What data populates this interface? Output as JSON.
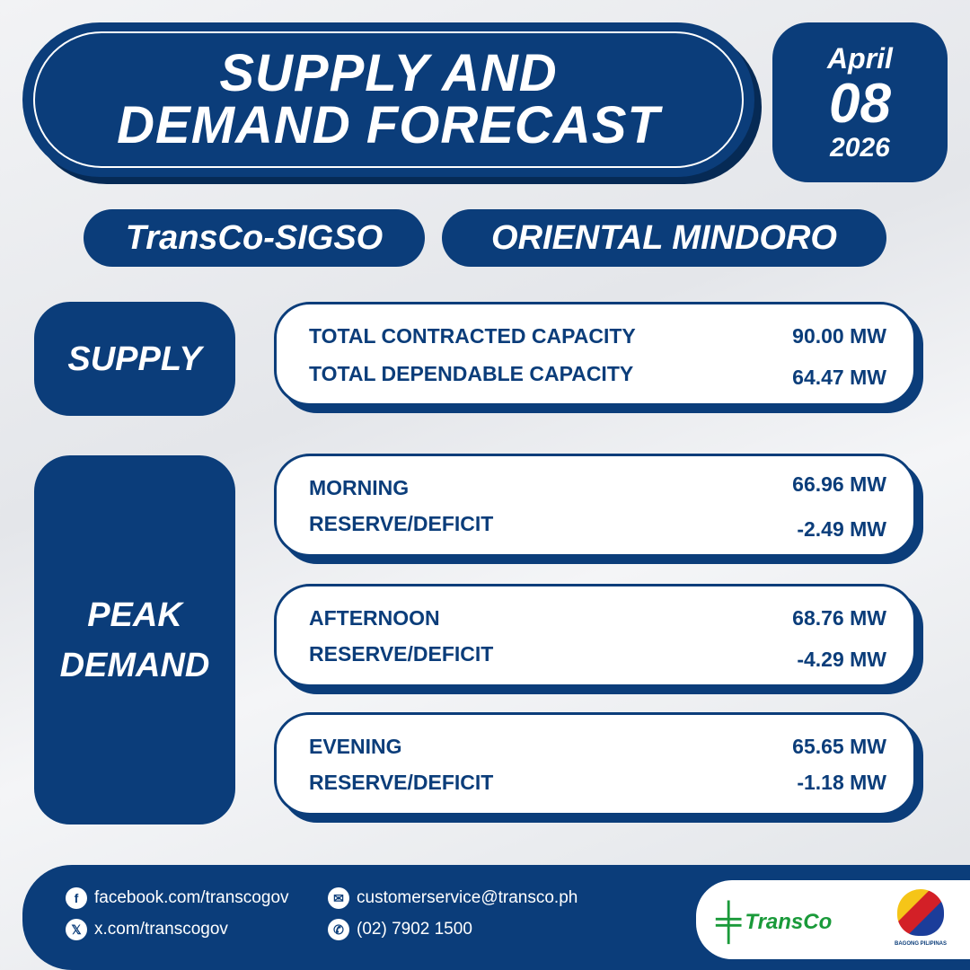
{
  "header": {
    "title_line1": "SUPPLY AND",
    "title_line2": "DEMAND FORECAST"
  },
  "date": {
    "month": "April",
    "day": "08",
    "year": "2026"
  },
  "tags": {
    "office": "TransCo-SIGSO",
    "province": "ORIENTAL MINDORO"
  },
  "supply": {
    "label": "SUPPLY",
    "rows": [
      {
        "label": "TOTAL CONTRACTED CAPACITY",
        "value": "90.00 MW"
      },
      {
        "label": "TOTAL DEPENDABLE CAPACITY",
        "value": "64.47 MW"
      }
    ]
  },
  "peak": {
    "label_line1": "PEAK",
    "label_line2": "DEMAND",
    "cards": [
      {
        "period": "MORNING",
        "demand": "66.96 MW",
        "reserve_label": "RESERVE/DEFICIT",
        "reserve": "-2.49 MW"
      },
      {
        "period": "AFTERNOON",
        "demand": "68.76 MW",
        "reserve_label": "RESERVE/DEFICIT",
        "reserve": "-4.29 MW"
      },
      {
        "period": "EVENING",
        "demand": "65.65 MW",
        "reserve_label": "RESERVE/DEFICIT",
        "reserve": "-1.18 MW"
      }
    ]
  },
  "footer": {
    "facebook": "facebook.com/transcogov",
    "x": "x.com/transcogov",
    "email": "customerservice@transco.ph",
    "phone": "(02) 7902 1500",
    "logo_text": "TransCo",
    "bp_text": "BAGONG PILIPINAS"
  },
  "colors": {
    "primary": "#0b3d7a",
    "shadow": "#062a55",
    "logo_green": "#1a9a3a"
  }
}
